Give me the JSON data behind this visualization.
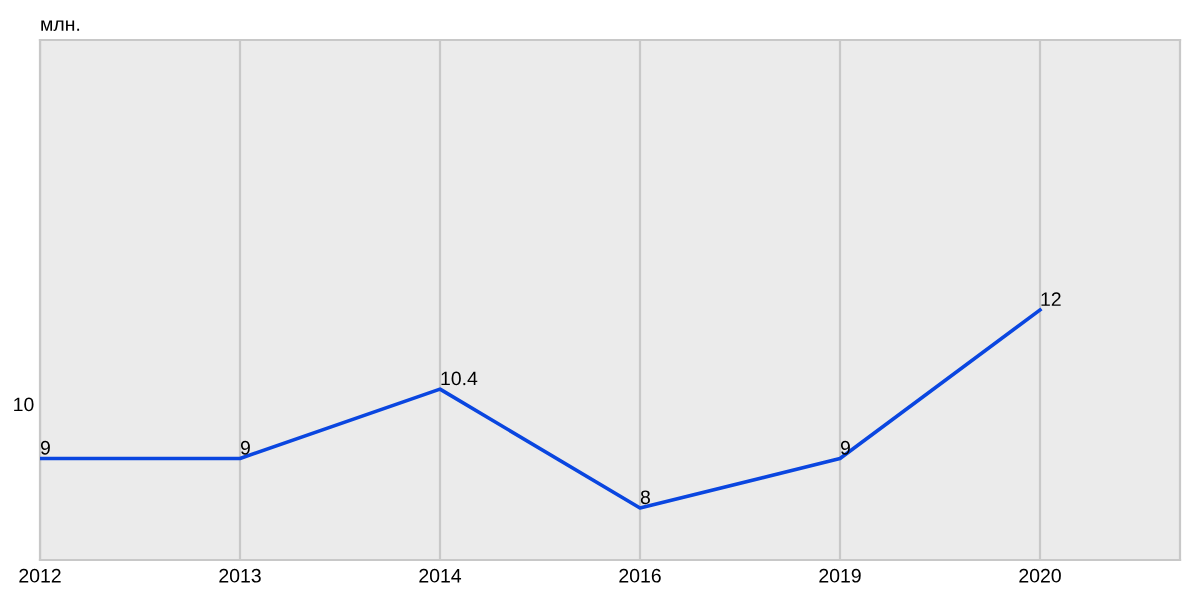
{
  "chart_data": {
    "type": "line",
    "ylabel": "млн.",
    "categories": [
      "2012",
      "2013",
      "2014",
      "2016",
      "2019",
      "2020"
    ],
    "series": [
      {
        "color": "#0a46e0",
        "values": [
          9,
          9,
          10.4,
          8,
          9,
          12
        ]
      }
    ],
    "ylim": [
      6.95,
      17.45
    ],
    "annotations": [
      "10"
    ],
    "grid": "x",
    "data_labels": true,
    "marker": "none",
    "line_style": "solid"
  }
}
